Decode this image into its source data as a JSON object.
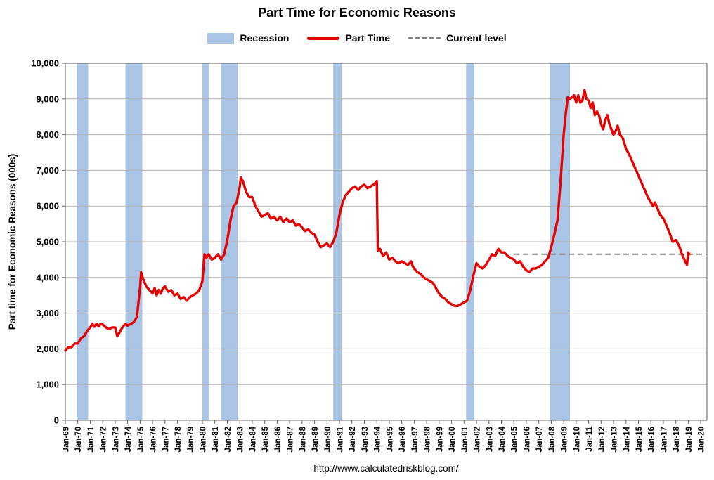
{
  "title": "Part Time for Economic Reasons",
  "legend": {
    "items": [
      {
        "label": "Recession",
        "type": "band"
      },
      {
        "label": "Part Time",
        "type": "line"
      },
      {
        "label": "Current level",
        "type": "dashed"
      }
    ]
  },
  "footer": {
    "url": "http://www.calculatedriskblog.com/"
  },
  "colors": {
    "recession": "#a9c4e4",
    "part_time": "#e60000",
    "current_level": "#808080",
    "gridline": "#b3b3b3",
    "border": "#666666",
    "text": "#000000"
  },
  "chart_data": {
    "type": "line",
    "title": "Part Time for Economic Reasons",
    "xlabel": "",
    "ylabel": "Part time for Economic Reasons (000s)",
    "xlim": [
      1969,
      2020.5
    ],
    "ylim": [
      0,
      10000
    ],
    "grid": "horizontal",
    "legend_position": "top",
    "y_ticks": {
      "values": [
        0,
        1000,
        2000,
        3000,
        4000,
        5000,
        6000,
        7000,
        8000,
        9000,
        10000
      ],
      "labels": [
        "0",
        "1,000",
        "2,000",
        "3,000",
        "4,000",
        "5,000",
        "6,000",
        "7,000",
        "8,000",
        "9,000",
        "10,000"
      ]
    },
    "x_ticks": {
      "years": [
        1969,
        1970,
        1971,
        1972,
        1973,
        1974,
        1975,
        1976,
        1977,
        1978,
        1979,
        1980,
        1981,
        1982,
        1983,
        1984,
        1985,
        1986,
        1987,
        1988,
        1989,
        1990,
        1991,
        1992,
        1993,
        1994,
        1995,
        1996,
        1997,
        1998,
        1999,
        2000,
        2001,
        2002,
        2003,
        2004,
        2005,
        2006,
        2007,
        2008,
        2009,
        2010,
        2011,
        2012,
        2013,
        2014,
        2015,
        2016,
        2017,
        2018,
        2019,
        2020
      ],
      "labels": [
        "Jan-69",
        "Jan-70",
        "Jan-71",
        "Jan-72",
        "Jan-73",
        "Jan-74",
        "Jan-75",
        "Jan-76",
        "Jan-77",
        "Jan-78",
        "Jan-79",
        "Jan-80",
        "Jan-81",
        "Jan-82",
        "Jan-83",
        "Jan-84",
        "Jan-85",
        "Jan-86",
        "Jan-87",
        "Jan-88",
        "Jan-89",
        "Jan-90",
        "Jan-91",
        "Jan-92",
        "Jan-93",
        "Jan-94",
        "Jan-95",
        "Jan-96",
        "Jan-97",
        "Jan-98",
        "Jan-99",
        "Jan-00",
        "Jan-01",
        "Jan-02",
        "Jan-03",
        "Jan-04",
        "Jan-05",
        "Jan-06",
        "Jan-07",
        "Jan-08",
        "Jan-09",
        "Jan-10",
        "Jan-11",
        "Jan-12",
        "Jan-13",
        "Jan-14",
        "Jan-15",
        "Jan-16",
        "Jan-17",
        "Jan-18",
        "Jan-19",
        "Jan-20"
      ]
    },
    "recessions": [
      [
        1969.92,
        1970.83
      ],
      [
        1973.83,
        1975.17
      ],
      [
        1980.0,
        1980.5
      ],
      [
        1981.5,
        1982.83
      ],
      [
        1990.5,
        1991.17
      ],
      [
        2001.17,
        2001.83
      ],
      [
        2007.92,
        2009.5
      ]
    ],
    "current_level": {
      "label": "Current level",
      "value": 4650,
      "x_start": 2005.0,
      "x_end": 2020.5
    },
    "series": [
      {
        "name": "Part Time",
        "units": "thousands",
        "points": [
          [
            1969.0,
            1950
          ],
          [
            1969.25,
            2050
          ],
          [
            1969.5,
            2050
          ],
          [
            1969.75,
            2150
          ],
          [
            1970.0,
            2150
          ],
          [
            1970.25,
            2300
          ],
          [
            1970.5,
            2350
          ],
          [
            1970.75,
            2500
          ],
          [
            1971.0,
            2600
          ],
          [
            1971.17,
            2700
          ],
          [
            1971.33,
            2620
          ],
          [
            1971.5,
            2700
          ],
          [
            1971.67,
            2630
          ],
          [
            1971.83,
            2700
          ],
          [
            1972.0,
            2680
          ],
          [
            1972.25,
            2600
          ],
          [
            1972.5,
            2550
          ],
          [
            1972.75,
            2600
          ],
          [
            1973.0,
            2600
          ],
          [
            1973.17,
            2350
          ],
          [
            1973.33,
            2450
          ],
          [
            1973.58,
            2600
          ],
          [
            1973.83,
            2700
          ],
          [
            1974.0,
            2650
          ],
          [
            1974.25,
            2700
          ],
          [
            1974.5,
            2750
          ],
          [
            1974.75,
            2900
          ],
          [
            1975.0,
            3750
          ],
          [
            1975.08,
            4150
          ],
          [
            1975.25,
            3950
          ],
          [
            1975.5,
            3750
          ],
          [
            1975.75,
            3650
          ],
          [
            1976.0,
            3550
          ],
          [
            1976.17,
            3700
          ],
          [
            1976.33,
            3500
          ],
          [
            1976.5,
            3650
          ],
          [
            1976.67,
            3550
          ],
          [
            1976.83,
            3700
          ],
          [
            1977.0,
            3750
          ],
          [
            1977.25,
            3600
          ],
          [
            1977.5,
            3650
          ],
          [
            1977.75,
            3500
          ],
          [
            1978.0,
            3550
          ],
          [
            1978.25,
            3400
          ],
          [
            1978.5,
            3450
          ],
          [
            1978.75,
            3350
          ],
          [
            1979.0,
            3450
          ],
          [
            1979.25,
            3500
          ],
          [
            1979.5,
            3550
          ],
          [
            1979.75,
            3650
          ],
          [
            1980.0,
            3900
          ],
          [
            1980.17,
            4650
          ],
          [
            1980.33,
            4550
          ],
          [
            1980.5,
            4650
          ],
          [
            1980.75,
            4500
          ],
          [
            1981.0,
            4550
          ],
          [
            1981.25,
            4650
          ],
          [
            1981.5,
            4500
          ],
          [
            1981.75,
            4650
          ],
          [
            1982.0,
            5050
          ],
          [
            1982.25,
            5600
          ],
          [
            1982.5,
            6000
          ],
          [
            1982.75,
            6100
          ],
          [
            1983.0,
            6550
          ],
          [
            1983.08,
            6800
          ],
          [
            1983.25,
            6700
          ],
          [
            1983.5,
            6400
          ],
          [
            1983.75,
            6250
          ],
          [
            1984.0,
            6250
          ],
          [
            1984.25,
            6000
          ],
          [
            1984.5,
            5850
          ],
          [
            1984.75,
            5700
          ],
          [
            1985.0,
            5750
          ],
          [
            1985.25,
            5800
          ],
          [
            1985.5,
            5650
          ],
          [
            1985.75,
            5700
          ],
          [
            1986.0,
            5600
          ],
          [
            1986.25,
            5700
          ],
          [
            1986.5,
            5550
          ],
          [
            1986.75,
            5650
          ],
          [
            1987.0,
            5550
          ],
          [
            1987.25,
            5600
          ],
          [
            1987.5,
            5450
          ],
          [
            1987.75,
            5500
          ],
          [
            1988.0,
            5400
          ],
          [
            1988.25,
            5300
          ],
          [
            1988.5,
            5350
          ],
          [
            1988.75,
            5250
          ],
          [
            1989.0,
            5200
          ],
          [
            1989.25,
            5000
          ],
          [
            1989.5,
            4850
          ],
          [
            1989.75,
            4900
          ],
          [
            1990.0,
            4950
          ],
          [
            1990.25,
            4850
          ],
          [
            1990.5,
            5000
          ],
          [
            1990.75,
            5250
          ],
          [
            1991.0,
            5750
          ],
          [
            1991.25,
            6100
          ],
          [
            1991.5,
            6300
          ],
          [
            1991.75,
            6400
          ],
          [
            1992.0,
            6500
          ],
          [
            1992.25,
            6550
          ],
          [
            1992.5,
            6450
          ],
          [
            1992.75,
            6550
          ],
          [
            1993.0,
            6600
          ],
          [
            1993.25,
            6500
          ],
          [
            1993.5,
            6550
          ],
          [
            1993.75,
            6600
          ],
          [
            1994.0,
            6700
          ],
          [
            1994.08,
            4750
          ],
          [
            1994.25,
            4800
          ],
          [
            1994.5,
            4600
          ],
          [
            1994.75,
            4700
          ],
          [
            1995.0,
            4500
          ],
          [
            1995.25,
            4550
          ],
          [
            1995.5,
            4450
          ],
          [
            1995.75,
            4400
          ],
          [
            1996.0,
            4450
          ],
          [
            1996.25,
            4400
          ],
          [
            1996.5,
            4350
          ],
          [
            1996.75,
            4450
          ],
          [
            1996.9,
            4300
          ],
          [
            1997.0,
            4250
          ],
          [
            1997.25,
            4150
          ],
          [
            1997.5,
            4100
          ],
          [
            1997.75,
            4000
          ],
          [
            1998.0,
            3950
          ],
          [
            1998.25,
            3900
          ],
          [
            1998.5,
            3850
          ],
          [
            1998.75,
            3700
          ],
          [
            1999.0,
            3550
          ],
          [
            1999.25,
            3450
          ],
          [
            1999.5,
            3400
          ],
          [
            1999.75,
            3300
          ],
          [
            2000.0,
            3250
          ],
          [
            2000.25,
            3200
          ],
          [
            2000.5,
            3200
          ],
          [
            2000.75,
            3250
          ],
          [
            2001.0,
            3300
          ],
          [
            2001.25,
            3350
          ],
          [
            2001.5,
            3650
          ],
          [
            2001.75,
            4050
          ],
          [
            2002.0,
            4400
          ],
          [
            2002.25,
            4300
          ],
          [
            2002.5,
            4250
          ],
          [
            2002.75,
            4350
          ],
          [
            2003.0,
            4500
          ],
          [
            2003.25,
            4650
          ],
          [
            2003.5,
            4600
          ],
          [
            2003.75,
            4800
          ],
          [
            2004.0,
            4700
          ],
          [
            2004.25,
            4700
          ],
          [
            2004.5,
            4600
          ],
          [
            2004.75,
            4550
          ],
          [
            2005.0,
            4500
          ],
          [
            2005.25,
            4400
          ],
          [
            2005.5,
            4450
          ],
          [
            2005.75,
            4300
          ],
          [
            2006.0,
            4200
          ],
          [
            2006.25,
            4150
          ],
          [
            2006.5,
            4250
          ],
          [
            2006.75,
            4250
          ],
          [
            2007.0,
            4300
          ],
          [
            2007.25,
            4350
          ],
          [
            2007.5,
            4450
          ],
          [
            2007.75,
            4550
          ],
          [
            2008.0,
            4850
          ],
          [
            2008.25,
            5200
          ],
          [
            2008.5,
            5600
          ],
          [
            2008.75,
            6700
          ],
          [
            2009.0,
            8000
          ],
          [
            2009.17,
            8600
          ],
          [
            2009.33,
            9050
          ],
          [
            2009.5,
            9000
          ],
          [
            2009.67,
            9050
          ],
          [
            2009.83,
            9100
          ],
          [
            2010.0,
            8900
          ],
          [
            2010.17,
            9100
          ],
          [
            2010.33,
            8900
          ],
          [
            2010.5,
            8950
          ],
          [
            2010.67,
            9250
          ],
          [
            2010.83,
            9000
          ],
          [
            2011.0,
            8950
          ],
          [
            2011.17,
            8750
          ],
          [
            2011.33,
            8900
          ],
          [
            2011.5,
            8550
          ],
          [
            2011.67,
            8650
          ],
          [
            2011.83,
            8550
          ],
          [
            2012.0,
            8300
          ],
          [
            2012.17,
            8150
          ],
          [
            2012.33,
            8400
          ],
          [
            2012.5,
            8550
          ],
          [
            2012.67,
            8300
          ],
          [
            2012.83,
            8150
          ],
          [
            2013.0,
            8000
          ],
          [
            2013.17,
            8100
          ],
          [
            2013.33,
            8250
          ],
          [
            2013.5,
            8000
          ],
          [
            2013.75,
            7900
          ],
          [
            2014.0,
            7600
          ],
          [
            2014.25,
            7450
          ],
          [
            2014.5,
            7250
          ],
          [
            2014.75,
            7050
          ],
          [
            2015.0,
            6850
          ],
          [
            2015.25,
            6650
          ],
          [
            2015.5,
            6450
          ],
          [
            2015.75,
            6250
          ],
          [
            2016.0,
            6100
          ],
          [
            2016.17,
            6000
          ],
          [
            2016.33,
            6100
          ],
          [
            2016.5,
            5950
          ],
          [
            2016.75,
            5750
          ],
          [
            2017.0,
            5650
          ],
          [
            2017.25,
            5450
          ],
          [
            2017.5,
            5250
          ],
          [
            2017.75,
            5000
          ],
          [
            2018.0,
            5050
          ],
          [
            2018.25,
            4900
          ],
          [
            2018.5,
            4650
          ],
          [
            2018.75,
            4450
          ],
          [
            2018.9,
            4350
          ],
          [
            2019.0,
            4700
          ],
          [
            2019.08,
            4650
          ]
        ]
      }
    ]
  }
}
